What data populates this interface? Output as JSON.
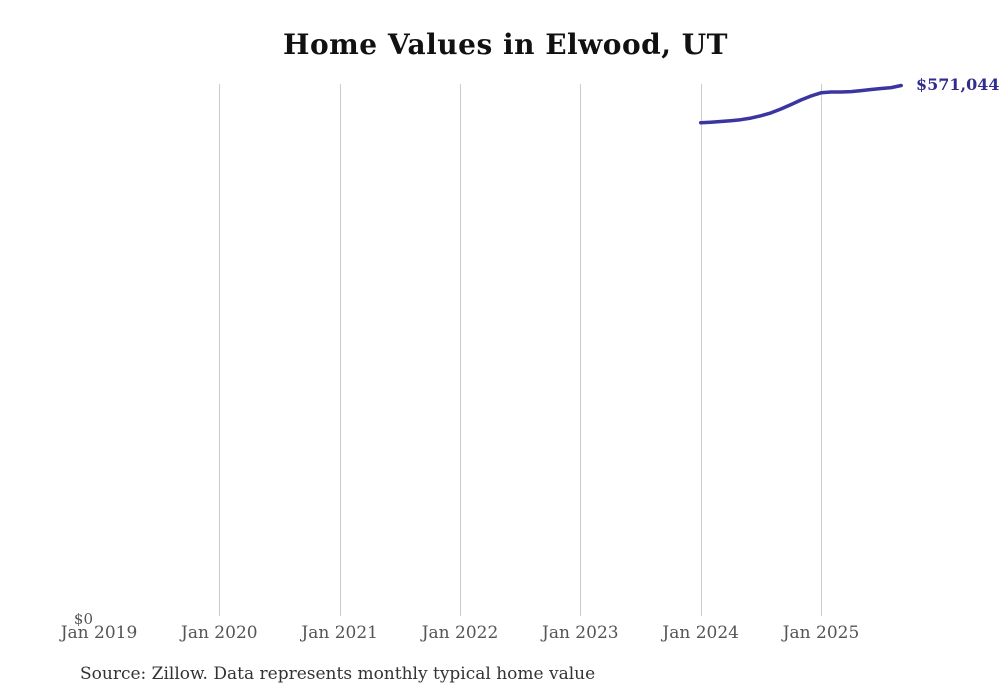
{
  "title": "Home Values in Elwood, UT",
  "source_note": "Source: Zillow. Data represents monthly typical home value",
  "y_axis": {
    "zero_label": "$0"
  },
  "x_axis": {
    "ticks": [
      "Jan 2019",
      "Jan 2020",
      "Jan 2021",
      "Jan 2022",
      "Jan 2023",
      "Jan 2024",
      "Jan 2025"
    ]
  },
  "end_value_label": "$571,044",
  "colors": {
    "line": "#3b35a0",
    "end_label": "#322c8e",
    "gridline": "#cccccc",
    "tick_label": "#555555",
    "title": "#111111",
    "source": "#333333",
    "background": "#ffffff"
  },
  "chart_data": {
    "type": "line",
    "title": "Home Values in Elwood, UT",
    "xlabel": "",
    "ylabel": "",
    "legend": "none",
    "gridlines": "vertical-yearly",
    "x_axis_range_shown": [
      "Jan 2019",
      "Sep 2025"
    ],
    "ylim": [
      0,
      572600
    ],
    "x": [
      "Jan 2024",
      "Feb 2024",
      "Mar 2024",
      "Apr 2024",
      "May 2024",
      "Jun 2024",
      "Jul 2024",
      "Aug 2024",
      "Sep 2024",
      "Oct 2024",
      "Nov 2024",
      "Dec 2024",
      "Jan 2025",
      "Feb 2025",
      "Mar 2025",
      "Apr 2025",
      "May 2025",
      "Jun 2025",
      "Jul 2025",
      "Aug 2025",
      "Sep 2025"
    ],
    "values": [
      531000,
      531500,
      532300,
      533200,
      534200,
      536000,
      538400,
      541600,
      545700,
      550500,
      555400,
      559700,
      563200,
      564000,
      564000,
      564500,
      565600,
      566700,
      567800,
      568800,
      571044
    ],
    "final_value_label": "$571,044"
  }
}
